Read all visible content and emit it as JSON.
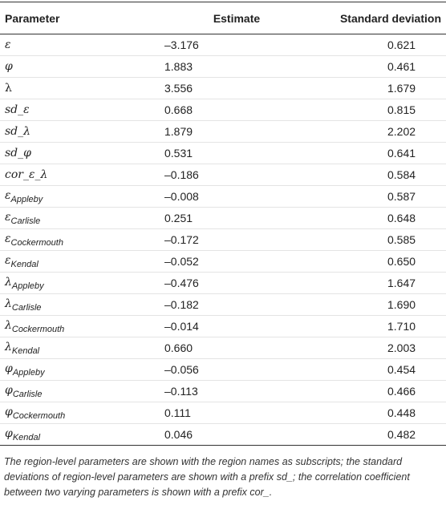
{
  "table": {
    "header": [
      "Parameter",
      "Estimate",
      "Standard deviation"
    ],
    "rows": [
      [
        "ε",
        "–3.176",
        "0.621"
      ],
      [
        "φ",
        "1.883",
        "0.461"
      ],
      [
        "λ",
        "3.556",
        "1.679"
      ],
      [
        "sd_ε",
        "0.668",
        "0.815"
      ],
      [
        "sd_λ",
        "1.879",
        "2.202"
      ],
      [
        "sd_φ",
        "0.531",
        "0.641"
      ],
      [
        "cor_ε_λ",
        "–0.186",
        "0.584"
      ],
      [
        {
          "symbol": "ε",
          "subscript": "Appleby"
        },
        "–0.008",
        "0.587"
      ],
      [
        {
          "symbol": "ε",
          "subscript": "Carlisle"
        },
        "0.251",
        "0.648"
      ],
      [
        {
          "symbol": "ε",
          "subscript": "Cockermouth"
        },
        "–0.172",
        "0.585"
      ],
      [
        {
          "symbol": "ε",
          "subscript": "Kendal"
        },
        "–0.052",
        "0.650"
      ],
      [
        {
          "symbol": "λ",
          "subscript": "Appleby"
        },
        "–0.476",
        "1.647"
      ],
      [
        {
          "symbol": "λ",
          "subscript": "Carlisle"
        },
        "–0.182",
        "1.690"
      ],
      [
        {
          "symbol": "λ",
          "subscript": "Cockermouth"
        },
        "–0.014",
        "1.710"
      ],
      [
        {
          "symbol": "λ",
          "subscript": "Kendal"
        },
        "0.660",
        "2.003"
      ],
      [
        {
          "symbol": "φ",
          "subscript": "Appleby"
        },
        "–0.056",
        "0.454"
      ],
      [
        {
          "symbol": "φ",
          "subscript": "Carlisle"
        },
        "–0.113",
        "0.466"
      ],
      [
        {
          "symbol": "φ",
          "subscript": "Cockermouth"
        },
        "0.111",
        "0.448"
      ],
      [
        {
          "symbol": "φ",
          "subscript": "Kendal"
        },
        "0.046",
        "0.482"
      ]
    ],
    "note": "The region-level parameters are shown with the region names as subscripts; the standard deviations of region-level parameters are shown with a prefix sd_; the correlation coefficient between two varying parameters is shown with a prefix cor_."
  }
}
